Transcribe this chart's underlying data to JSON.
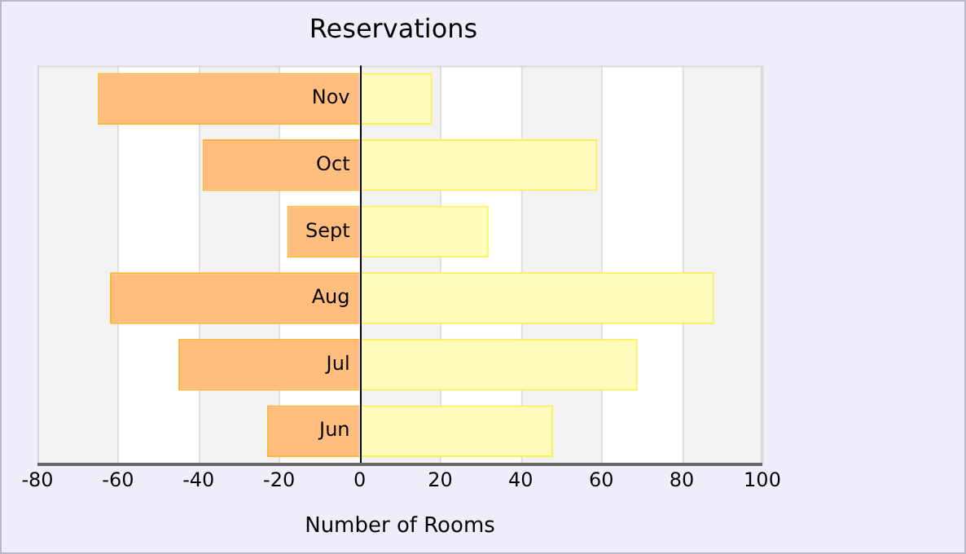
{
  "chart_data": {
    "type": "bar",
    "orientation": "horizontal",
    "stacked": true,
    "title": "Reservations",
    "xlabel": "Number of Rooms",
    "categories": [
      "Nov",
      "Oct",
      "Sept",
      "Aug",
      "Jul",
      "Jun"
    ],
    "series": [
      {
        "color": "#ffbe7d",
        "values": [
          -65,
          -39,
          -18,
          -62,
          -45,
          -23
        ]
      },
      {
        "color": "#fdfcbd",
        "values": [
          18,
          59,
          32,
          88,
          69,
          48
        ]
      }
    ],
    "xlim": [
      -80,
      100
    ],
    "xticks": [
      -80,
      -60,
      -40,
      -20,
      0,
      20,
      40,
      60,
      80,
      100
    ],
    "grid": "x",
    "legend": false
  }
}
